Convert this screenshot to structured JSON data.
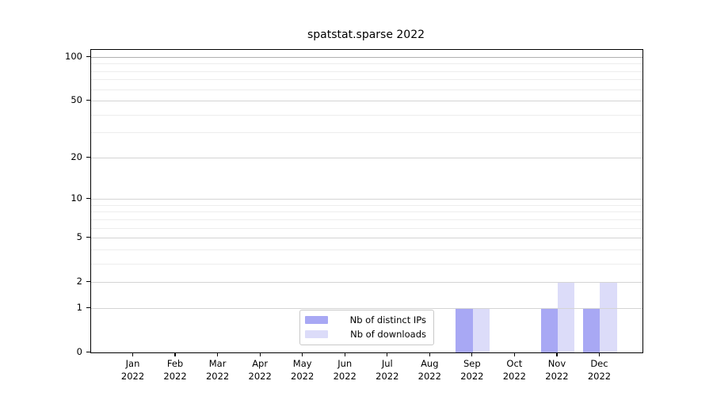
{
  "chart_data": {
    "type": "bar",
    "title": "spatstat.sparse 2022",
    "categories": [
      "Jan 2022",
      "Feb 2022",
      "Mar 2022",
      "Apr 2022",
      "May 2022",
      "Jun 2022",
      "Jul 2022",
      "Aug 2022",
      "Sep 2022",
      "Oct 2022",
      "Nov 2022",
      "Dec 2022"
    ],
    "series": [
      {
        "name": "Nb of distinct IPs",
        "color": "#a8a8f4",
        "values": [
          0,
          0,
          0,
          0,
          0,
          0,
          0,
          0,
          1,
          0,
          1,
          1
        ]
      },
      {
        "name": "Nb of downloads",
        "color": "#dcdcf9",
        "values": [
          0,
          0,
          0,
          0,
          0,
          0,
          0,
          0,
          1,
          0,
          2,
          2
        ]
      }
    ],
    "xlabel": "",
    "ylabel": "",
    "yscale": "log1p",
    "ylim": [
      0,
      100
    ],
    "yticks": [
      0,
      1,
      2,
      5,
      10,
      20,
      50,
      100
    ],
    "minor_yticks": [
      3,
      4,
      6,
      7,
      8,
      9,
      30,
      40,
      60,
      70,
      80,
      90
    ],
    "grid": "horizontal",
    "legend_position": "inside-bottom-center",
    "colors": {
      "grid_minor": "#ededed",
      "grid_major": "#d4d4d4",
      "grid_top": "#b0b0b0",
      "spine": "#000000",
      "background": "#ffffff"
    }
  }
}
